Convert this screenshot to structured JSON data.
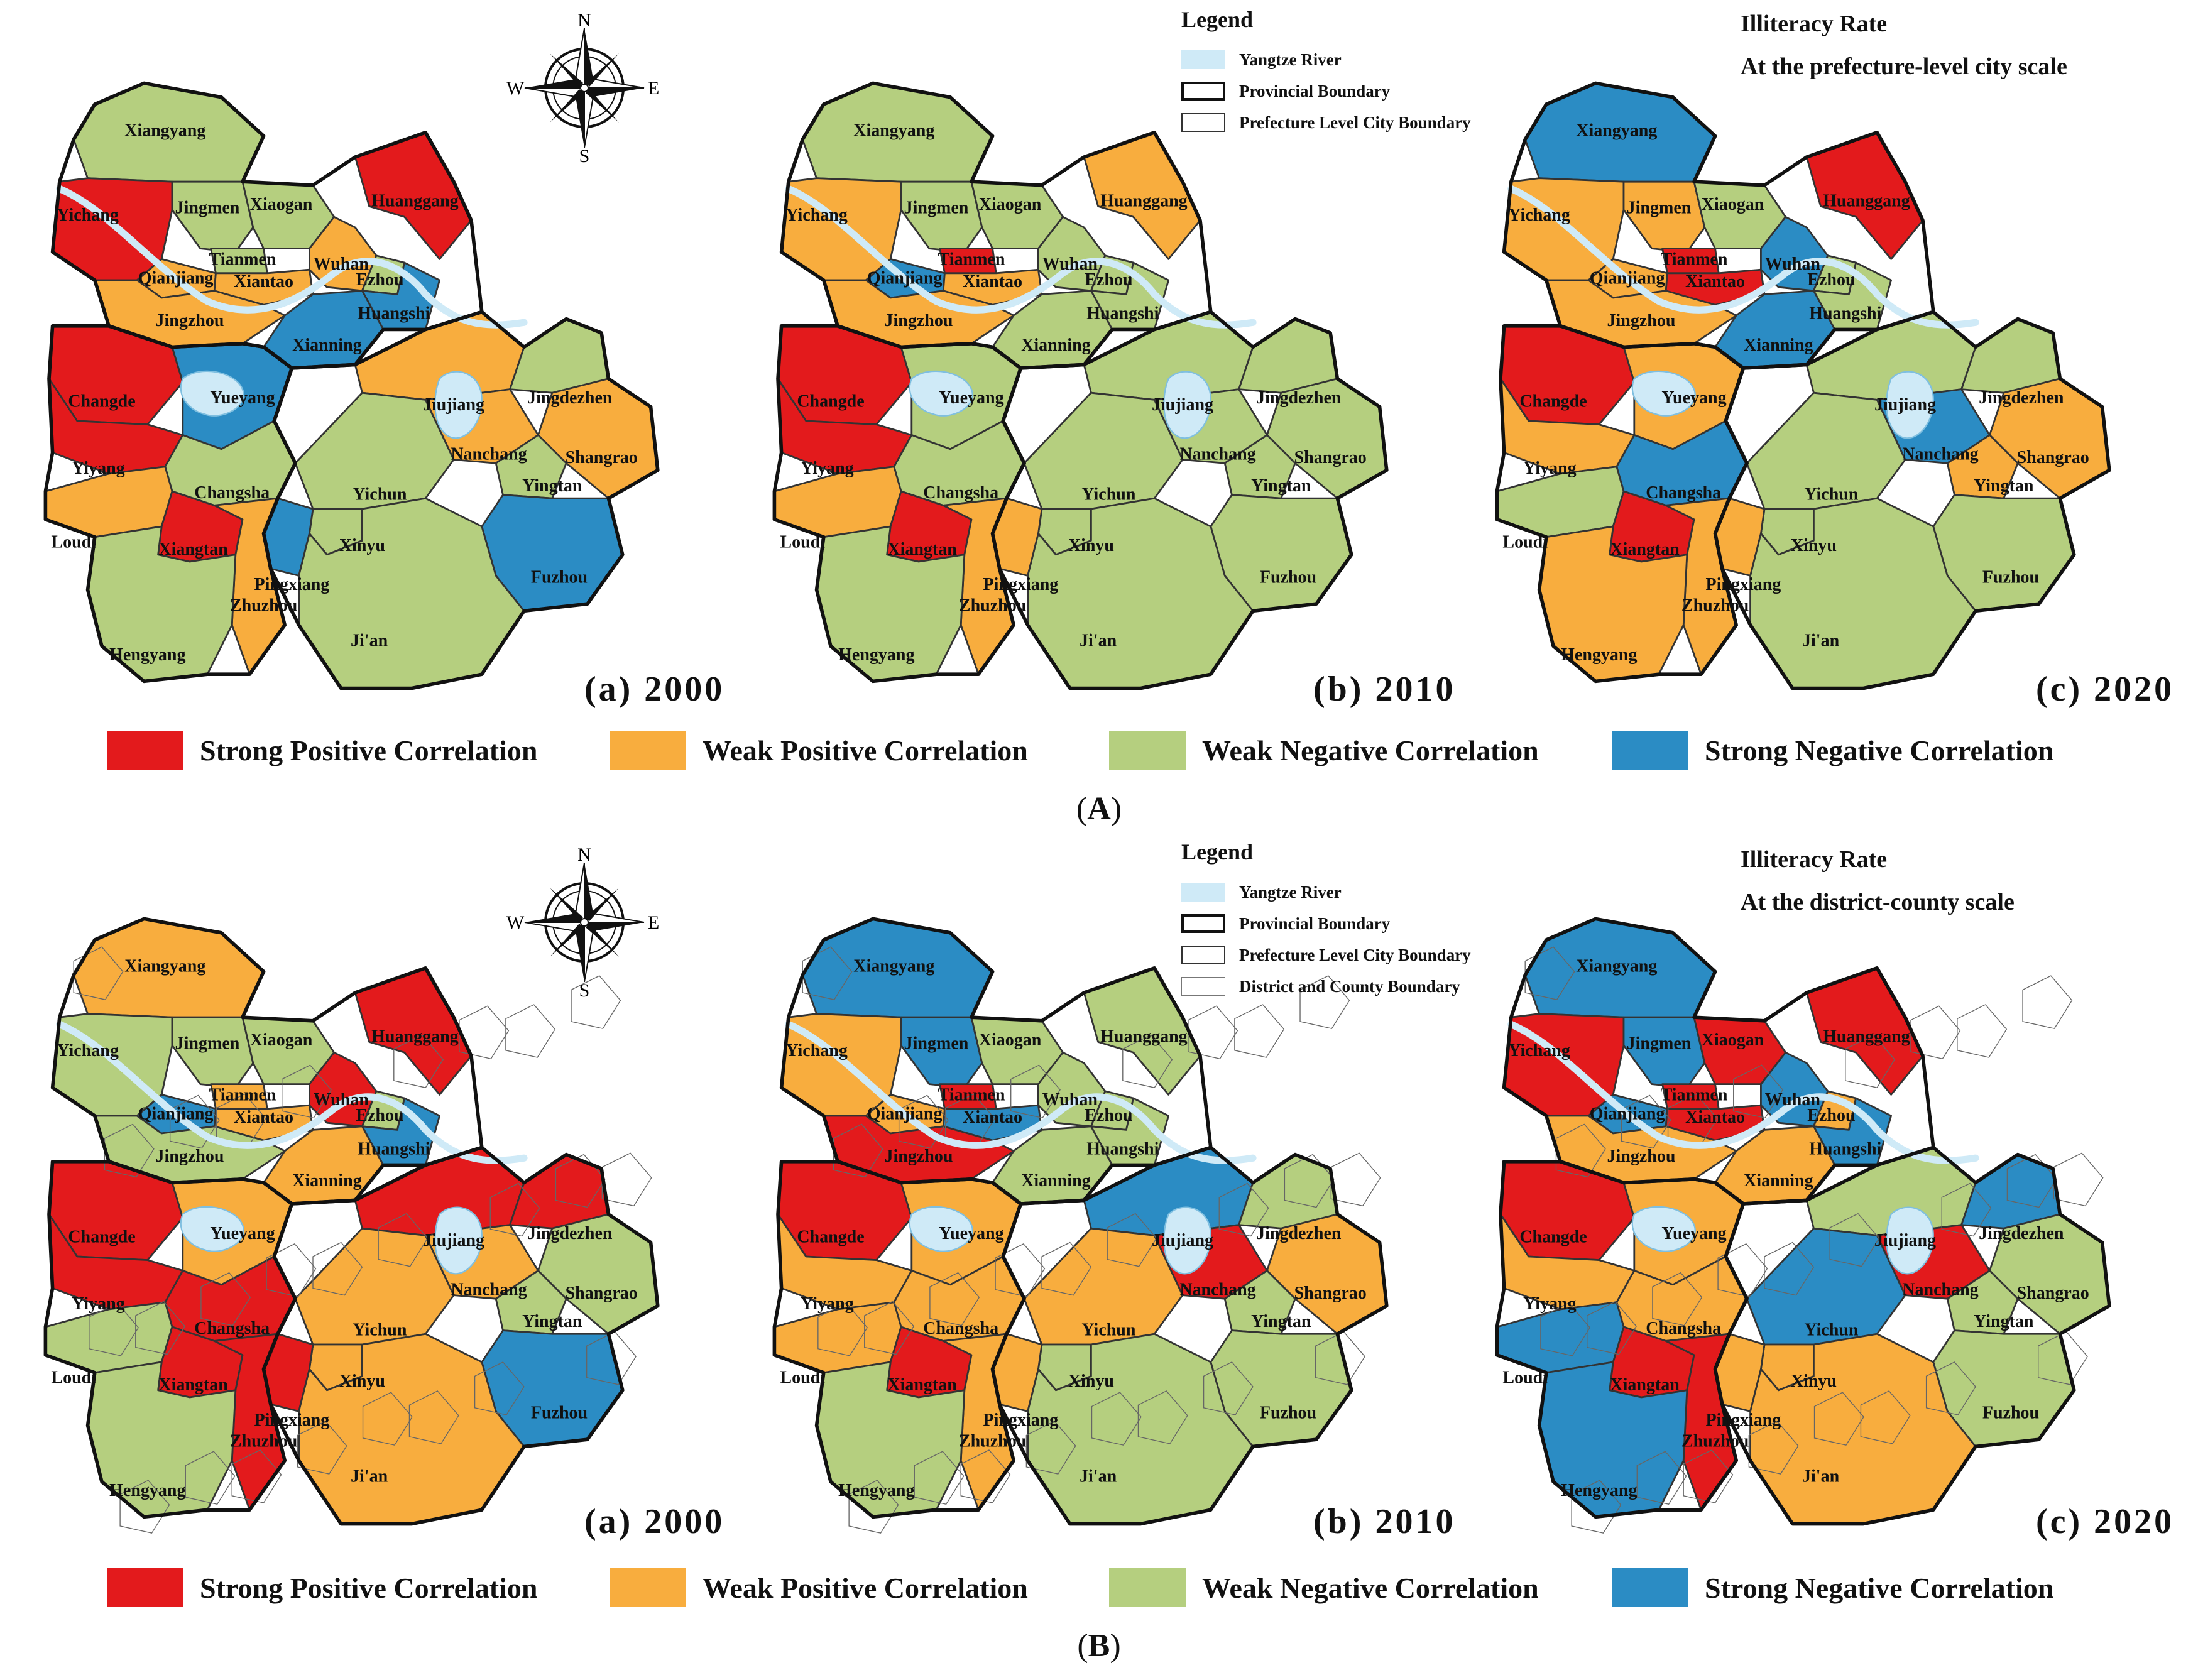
{
  "categories": [
    {
      "key": "sp",
      "label": "Strong Positive Correlation",
      "color": "#e31a1c"
    },
    {
      "key": "wp",
      "label": "Weak Positive Correlation",
      "color": "#f8ad3e"
    },
    {
      "key": "wn",
      "label": "Weak Negative Correlation",
      "color": "#b5cf7f"
    },
    {
      "key": "sn",
      "label": "Strong Negative Correlation",
      "color": "#2b8cc4"
    }
  ],
  "legend": {
    "title": "Legend",
    "river": "Yangtze River",
    "provincial": "Provincial Boundary",
    "prefecture": "Prefecture Level City Boundary",
    "district": "District and County Boundary"
  },
  "compass": {
    "n": "N",
    "s": "S",
    "e": "E",
    "w": "W"
  },
  "section_a": {
    "caption_open": "(",
    "caption_letter": "A",
    "caption_close": ")",
    "header_line1": "Illiteracy Rate",
    "header_line2": "At the prefecture-level city scale",
    "panels": [
      {
        "year": "(a) 2000",
        "cities": {
          "Xiangyang": "wn",
          "Jingmen": "wn",
          "Xiaogan": "wn",
          "Yichang": "sp",
          "Huanggang": "sp",
          "Tianmen": "wn",
          "Wuhan": "wp",
          "Ezhou": "wn",
          "Qianjiang": "wp",
          "Xiantao": "wp",
          "Jingzhou": "wp",
          "Huangshi": "sn",
          "Xianning": "sn",
          "Changde": "sp",
          "Yueyang": "sn",
          "Jiujiang": "wp",
          "Jingdezhen": "wn",
          "Shangrao": "wp",
          "Yiyang": "sp",
          "Nanchang": "wp",
          "Yingtan": "wn",
          "Changsha": "wn",
          "Yichun": "wn",
          "Loudi": "wp",
          "Xiangtan": "sp",
          "Xinyu": "wn",
          "Pingxiang": "sn",
          "Fuzhou": "sn",
          "Zhuzhou": "wp",
          "Ji'an": "wn",
          "Hengyang": "wn"
        }
      },
      {
        "year": "(b) 2010",
        "cities": {
          "Xiangyang": "wn",
          "Jingmen": "wn",
          "Xiaogan": "wn",
          "Yichang": "wp",
          "Huanggang": "wp",
          "Tianmen": "sp",
          "Wuhan": "wn",
          "Ezhou": "wn",
          "Qianjiang": "sn",
          "Xiantao": "wp",
          "Jingzhou": "wp",
          "Huangshi": "wn",
          "Xianning": "wn",
          "Changde": "sp",
          "Yueyang": "wn",
          "Jiujiang": "wn",
          "Jingdezhen": "wn",
          "Shangrao": "wn",
          "Yiyang": "sp",
          "Nanchang": "wn",
          "Yingtan": "wn",
          "Changsha": "wn",
          "Yichun": "wn",
          "Loudi": "wp",
          "Xiangtan": "sp",
          "Xinyu": "wn",
          "Pingxiang": "wp",
          "Fuzhou": "wn",
          "Zhuzhou": "wp",
          "Ji'an": "wn",
          "Hengyang": "wn"
        }
      },
      {
        "year": "(c) 2020",
        "cities": {
          "Xiangyang": "sn",
          "Jingmen": "wp",
          "Xiaogan": "wn",
          "Yichang": "wp",
          "Huanggang": "sp",
          "Tianmen": "sp",
          "Wuhan": "sn",
          "Ezhou": "wn",
          "Qianjiang": "wp",
          "Xiantao": "sp",
          "Jingzhou": "wp",
          "Huangshi": "wn",
          "Xianning": "sn",
          "Changde": "sp",
          "Yueyang": "wp",
          "Jiujiang": "wn",
          "Jingdezhen": "wn",
          "Shangrao": "wp",
          "Yiyang": "wp",
          "Nanchang": "sn",
          "Yingtan": "wp",
          "Changsha": "sn",
          "Yichun": "wn",
          "Loudi": "wn",
          "Xiangtan": "sp",
          "Xinyu": "wn",
          "Pingxiang": "wp",
          "Fuzhou": "wn",
          "Zhuzhou": "wp",
          "Ji'an": "wn",
          "Hengyang": "wp"
        }
      }
    ]
  },
  "section_b": {
    "caption_open": "(",
    "caption_letter": "B",
    "caption_close": ")",
    "header_line1": "Illiteracy Rate",
    "header_line2": "At the district-county scale",
    "panels": [
      {
        "year": "(a) 2000",
        "cities": {
          "Xiangyang": "wp",
          "Jingmen": "wn",
          "Xiaogan": "wn",
          "Yichang": "wn",
          "Huanggang": "sp",
          "Tianmen": "wp",
          "Wuhan": "sp",
          "Ezhou": "wn",
          "Qianjiang": "sn",
          "Xiantao": "wp",
          "Jingzhou": "wn",
          "Huangshi": "sn",
          "Xianning": "wp",
          "Changde": "sp",
          "Yueyang": "wp",
          "Jiujiang": "sp",
          "Jingdezhen": "sp",
          "Shangrao": "wn",
          "Yiyang": "sp",
          "Nanchang": "wp",
          "Yingtan": "wn",
          "Changsha": "sp",
          "Yichun": "wp",
          "Loudi": "wn",
          "Xiangtan": "sp",
          "Xinyu": "wp",
          "Pingxiang": "sp",
          "Fuzhou": "sn",
          "Zhuzhou": "sp",
          "Ji'an": "wp",
          "Hengyang": "wn"
        }
      },
      {
        "year": "(b) 2010",
        "cities": {
          "Xiangyang": "sn",
          "Jingmen": "sn",
          "Xiaogan": "wn",
          "Yichang": "wp",
          "Huanggang": "wn",
          "Tianmen": "sp",
          "Wuhan": "wn",
          "Ezhou": "wn",
          "Qianjiang": "wp",
          "Xiantao": "sn",
          "Jingzhou": "sp",
          "Huangshi": "wn",
          "Xianning": "wn",
          "Changde": "sp",
          "Yueyang": "wp",
          "Jiujiang": "sn",
          "Jingdezhen": "wn",
          "Shangrao": "wp",
          "Yiyang": "wp",
          "Nanchang": "sp",
          "Yingtan": "wn",
          "Changsha": "wp",
          "Yichun": "wp",
          "Loudi": "wp",
          "Xiangtan": "sp",
          "Xinyu": "wn",
          "Pingxiang": "wp",
          "Fuzhou": "wn",
          "Zhuzhou": "wp",
          "Ji'an": "wn",
          "Hengyang": "wn"
        }
      },
      {
        "year": "(c) 2020",
        "cities": {
          "Xiangyang": "sn",
          "Jingmen": "sn",
          "Xiaogan": "sp",
          "Yichang": "sp",
          "Huanggang": "sp",
          "Tianmen": "sp",
          "Wuhan": "sn",
          "Ezhou": "wp",
          "Qianjiang": "sn",
          "Xiantao": "sp",
          "Jingzhou": "wp",
          "Huangshi": "sn",
          "Xianning": "wp",
          "Changde": "sp",
          "Yueyang": "wp",
          "Jiujiang": "wn",
          "Jingdezhen": "sn",
          "Shangrao": "wn",
          "Yiyang": "wp",
          "Nanchang": "sp",
          "Yingtan": "wn",
          "Changsha": "wp",
          "Yichun": "sn",
          "Loudi": "sn",
          "Xiangtan": "sp",
          "Xinyu": "wp",
          "Pingxiang": "wp",
          "Fuzhou": "wn",
          "Zhuzhou": "sp",
          "Ji'an": "wp",
          "Hengyang": "sn"
        }
      }
    ]
  }
}
